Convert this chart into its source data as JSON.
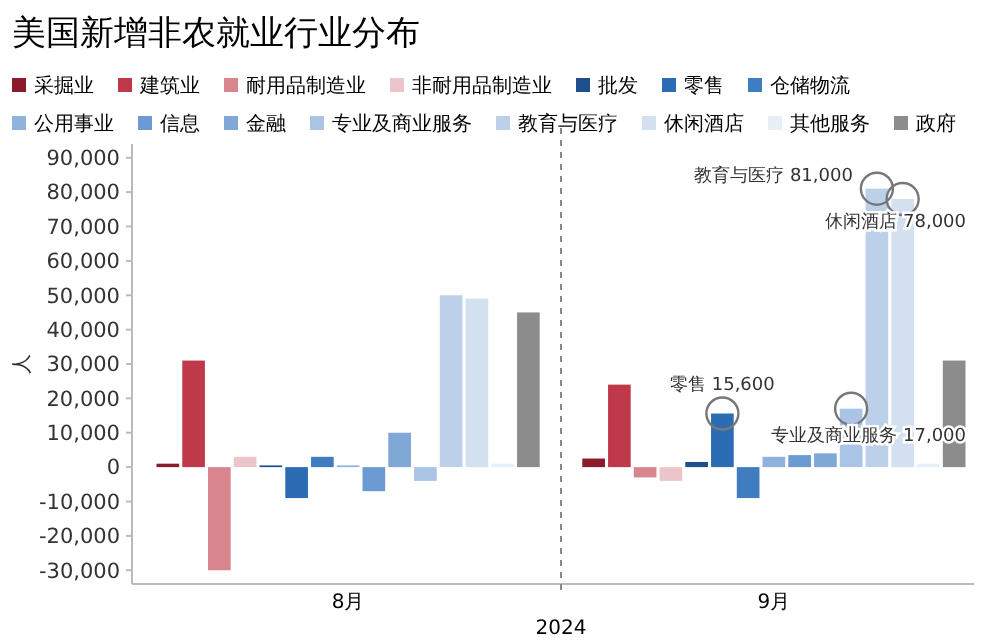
{
  "chart_data": {
    "type": "bar",
    "title": "美国新增非农就业行业分布",
    "ylabel": "人",
    "categories": [
      "8月",
      "9月"
    ],
    "ylim": [
      -34000,
      94000
    ],
    "yticks": [
      {
        "value": -30000,
        "label": "-30,000"
      },
      {
        "value": -20000,
        "label": "-20,000"
      },
      {
        "value": -10000,
        "label": "-10,000"
      },
      0,
      {
        "value": 10000,
        "label": "10,000"
      },
      {
        "value": 20000,
        "label": "20,000"
      },
      {
        "value": 30000,
        "label": "30,000"
      },
      {
        "value": 40000,
        "label": "40,000"
      },
      {
        "value": 50000,
        "label": "50,000"
      },
      {
        "value": 60000,
        "label": "60,000"
      },
      {
        "value": 70000,
        "label": "70,000"
      },
      {
        "value": 80000,
        "label": "80,000"
      },
      {
        "value": 90000,
        "label": "90,000"
      }
    ],
    "grid": false,
    "legend": "top",
    "series": [
      {
        "name": "采掘业",
        "color": "#8b1a2b",
        "values": [
          1000,
          2500
        ]
      },
      {
        "name": "建筑业",
        "color": "#c0394b",
        "values": [
          31000,
          24000
        ]
      },
      {
        "name": "耐用品制造业",
        "color": "#d98590",
        "values": [
          -30000,
          -3000
        ]
      },
      {
        "name": "非耐用品制造业",
        "color": "#ecc5ca",
        "values": [
          3000,
          -4000
        ]
      },
      {
        "name": "批发",
        "color": "#1f4e8c",
        "values": [
          500,
          1500
        ]
      },
      {
        "name": "零售",
        "color": "#2b6cb5",
        "values": [
          -9000,
          15600
        ]
      },
      {
        "name": "仓储物流",
        "color": "#3f7cc0",
        "values": [
          3000,
          -9000
        ]
      },
      {
        "name": "公用事业",
        "color": "#8fb3dc",
        "values": [
          500,
          3000
        ]
      },
      {
        "name": "信息",
        "color": "#6b9bd2",
        "values": [
          -7000,
          3500
        ]
      },
      {
        "name": "金融",
        "color": "#7fa8d6",
        "values": [
          10000,
          4000
        ]
      },
      {
        "name": "专业及商业服务",
        "color": "#a9c4e4",
        "values": [
          -4000,
          17000
        ]
      },
      {
        "name": "教育与医疗",
        "color": "#bcd0e9",
        "values": [
          50000,
          81000
        ]
      },
      {
        "name": "休闲酒店",
        "color": "#d3e0f0",
        "values": [
          49000,
          78000
        ]
      },
      {
        "name": "其他服务",
        "color": "#e8eef6",
        "values": [
          1000,
          1000
        ]
      },
      {
        "name": "政府",
        "color": "#8c8c8c",
        "values": [
          45000,
          31000
        ]
      }
    ],
    "annotations": [
      "教育与医疗 81,000",
      "休闲酒店 78,000",
      "零售 15,600",
      "专业及商业服务 17,000",
      "2024"
    ]
  }
}
